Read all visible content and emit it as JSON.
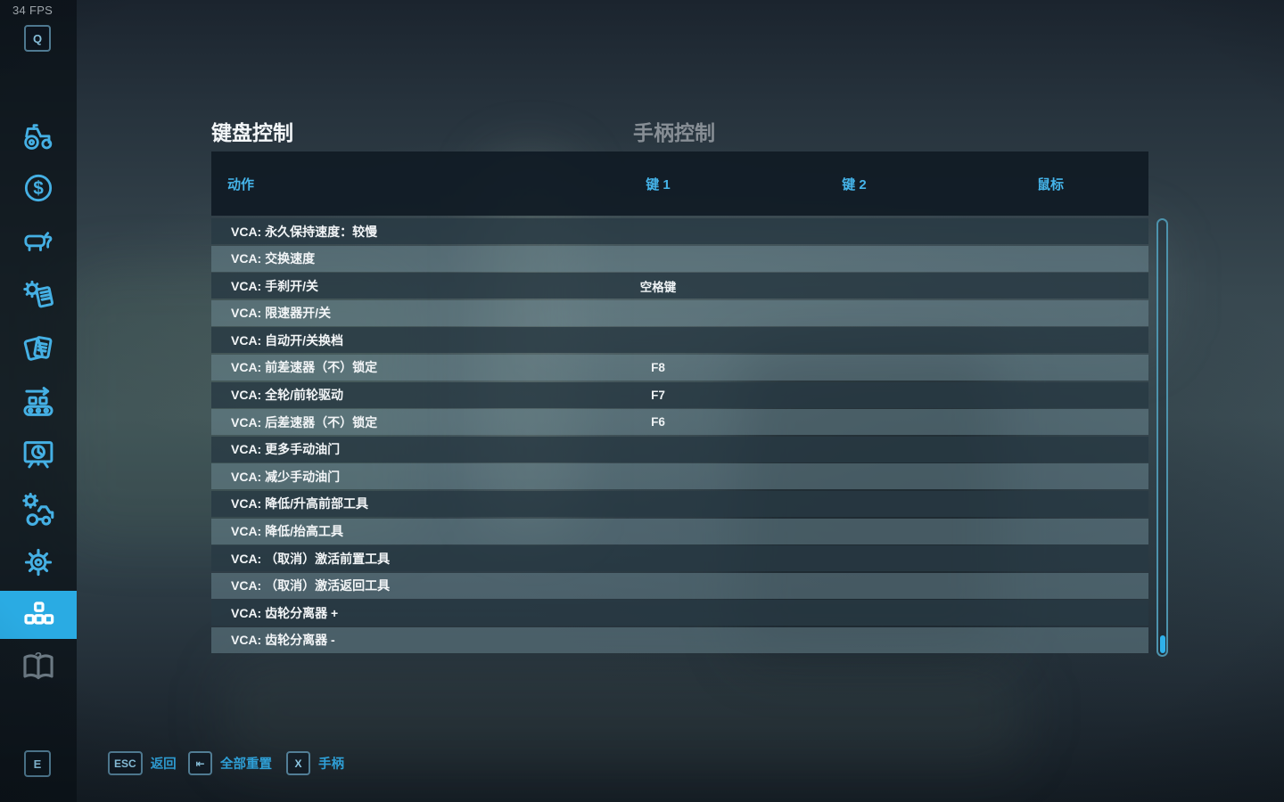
{
  "hud": {
    "fps_counter": "34 FPS"
  },
  "sidebar": {
    "top_keycap": "Q",
    "bottom_keycap": "E",
    "icons": [
      "tractor-icon",
      "finances-icon",
      "animals-icon",
      "contracts-icon",
      "documents-icon",
      "production-icon",
      "statistics-icon",
      "garage-icon",
      "settings-icon",
      "mods-icon",
      "help-icon"
    ],
    "active_icon": "mods-icon",
    "dollar_glyph": "$",
    "help_glyph": "?"
  },
  "tabs": {
    "keyboard_label": "键盘控制",
    "gamepad_label": "手柄控制"
  },
  "controls_table": {
    "headers": {
      "action": "动作",
      "key1": "键 1",
      "key2": "键 2",
      "mouse": "鼠标"
    },
    "rows": [
      {
        "action": "VCA: 永久保持速度：较慢",
        "key1": "",
        "key2": "",
        "mouse": ""
      },
      {
        "action": "VCA: 交换速度",
        "key1": "",
        "key2": "",
        "mouse": ""
      },
      {
        "action": "VCA: 手刹开/关",
        "key1": "空格键",
        "key2": "",
        "mouse": ""
      },
      {
        "action": "VCA: 限速器开/关",
        "key1": "",
        "key2": "",
        "mouse": ""
      },
      {
        "action": "VCA: 自动开/关换档",
        "key1": "",
        "key2": "",
        "mouse": ""
      },
      {
        "action": "VCA: 前差速器（不）锁定",
        "key1": "F8",
        "key2": "",
        "mouse": ""
      },
      {
        "action": "VCA: 全轮/前轮驱动",
        "key1": "F7",
        "key2": "",
        "mouse": ""
      },
      {
        "action": "VCA: 后差速器（不）锁定",
        "key1": "F6",
        "key2": "",
        "mouse": ""
      },
      {
        "action": "VCA: 更多手动油门",
        "key1": "",
        "key2": "",
        "mouse": ""
      },
      {
        "action": "VCA: 减少手动油门",
        "key1": "",
        "key2": "",
        "mouse": ""
      },
      {
        "action": "VCA: 降低/升高前部工具",
        "key1": "",
        "key2": "",
        "mouse": ""
      },
      {
        "action": "VCA: 降低/抬高工具",
        "key1": "",
        "key2": "",
        "mouse": ""
      },
      {
        "action": "VCA: （取消）激活前置工具",
        "key1": "",
        "key2": "",
        "mouse": ""
      },
      {
        "action": "VCA: （取消）激活返回工具",
        "key1": "",
        "key2": "",
        "mouse": ""
      },
      {
        "action": "VCA: 齿轮分离器 +",
        "key1": "",
        "key2": "",
        "mouse": ""
      },
      {
        "action": "VCA: 齿轮分离器 -",
        "key1": "",
        "key2": "",
        "mouse": ""
      }
    ]
  },
  "footer": {
    "buttons": [
      {
        "keycap": "ESC",
        "label": "返回"
      },
      {
        "keycap": "⇤",
        "label": "全部重置"
      },
      {
        "keycap": "X",
        "label": "手柄"
      }
    ]
  },
  "colors": {
    "accent_blue": "#2aabe3",
    "header_text": "#45b4e9",
    "footer_label": "#2f9fd6",
    "row_dark": "rgba(40,58,68,0.80)",
    "row_light": "rgba(112,142,152,0.48)"
  }
}
